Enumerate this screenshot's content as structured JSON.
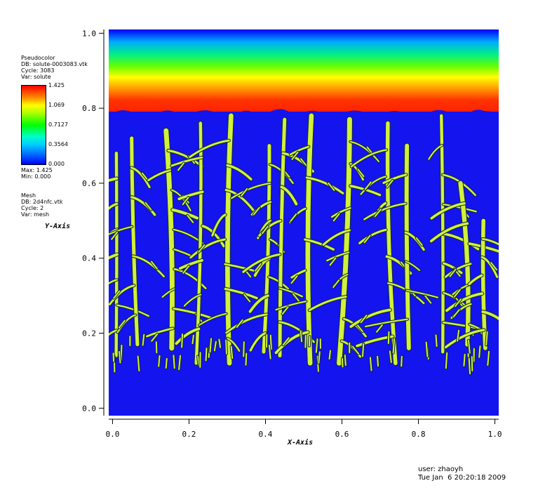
{
  "legend": {
    "pseudocolor": {
      "title": "Pseudocolor",
      "db": "DB: solute-0003083.vtk",
      "cycle": "Cycle: 3083",
      "var": "Var: solute",
      "ticks": [
        "1.425",
        "1.069",
        "0.7127",
        "0.3564",
        "0.000"
      ],
      "max": "Max: 1.425",
      "min": "Min: 0.000"
    },
    "mesh": {
      "title": "Mesh",
      "db": "DB: 2d4nfc.vtk",
      "cycle": "Cycle: 2",
      "var": "Var: mesh"
    }
  },
  "footer": {
    "user": "user: zhaoyh",
    "timestamp": "Tue Jan  6 20:20:18 2009"
  },
  "colors": {
    "background_field": "#1414ee",
    "dendrite": "#d2f03c",
    "dendrite_edge": "#0e2a3a"
  },
  "chart_data": {
    "type": "heatmap",
    "title": "",
    "xlabel": "X-Axis",
    "ylabel": "Y-Axis",
    "xlim": [
      -0.01,
      1.01
    ],
    "ylim": [
      -0.02,
      1.01
    ],
    "x_ticks": [
      "0.0",
      "0.2",
      "0.4",
      "0.6",
      "0.8",
      "1.0"
    ],
    "y_ticks": [
      "0.0",
      "0.2",
      "0.4",
      "0.6",
      "0.8",
      "1.0"
    ],
    "colorbar": {
      "min": 0.0,
      "max": 1.425,
      "colormap": "rainbow"
    },
    "solute_profile": [
      {
        "y": 1.0,
        "value": 0.0
      },
      {
        "y": 0.95,
        "value": 0.36
      },
      {
        "y": 0.915,
        "value": 0.71
      },
      {
        "y": 0.885,
        "value": 1.07
      },
      {
        "y": 0.85,
        "value": 1.3
      },
      {
        "y": 0.8,
        "value": 1.425
      }
    ],
    "front_y": 0.8,
    "trunks": [
      {
        "x": 0.01,
        "y_tip": 0.68,
        "y_base": 0.14
      },
      {
        "x": 0.05,
        "y_tip": 0.72,
        "y_base": 0.17
      },
      {
        "x": 0.14,
        "y_tip": 0.74,
        "y_base": 0.16
      },
      {
        "x": 0.23,
        "y_tip": 0.76,
        "y_base": 0.12
      },
      {
        "x": 0.31,
        "y_tip": 0.78,
        "y_base": 0.12
      },
      {
        "x": 0.41,
        "y_tip": 0.7,
        "y_base": 0.15
      },
      {
        "x": 0.45,
        "y_tip": 0.77,
        "y_base": 0.14
      },
      {
        "x": 0.52,
        "y_tip": 0.78,
        "y_base": 0.12
      },
      {
        "x": 0.62,
        "y_tip": 0.77,
        "y_base": 0.12
      },
      {
        "x": 0.72,
        "y_tip": 0.76,
        "y_base": 0.12
      },
      {
        "x": 0.77,
        "y_tip": 0.7,
        "y_base": 0.16
      },
      {
        "x": 0.86,
        "y_tip": 0.78,
        "y_base": 0.15
      },
      {
        "x": 0.91,
        "y_tip": 0.6,
        "y_base": 0.17
      },
      {
        "x": 0.97,
        "y_tip": 0.5,
        "y_base": 0.16
      }
    ]
  }
}
